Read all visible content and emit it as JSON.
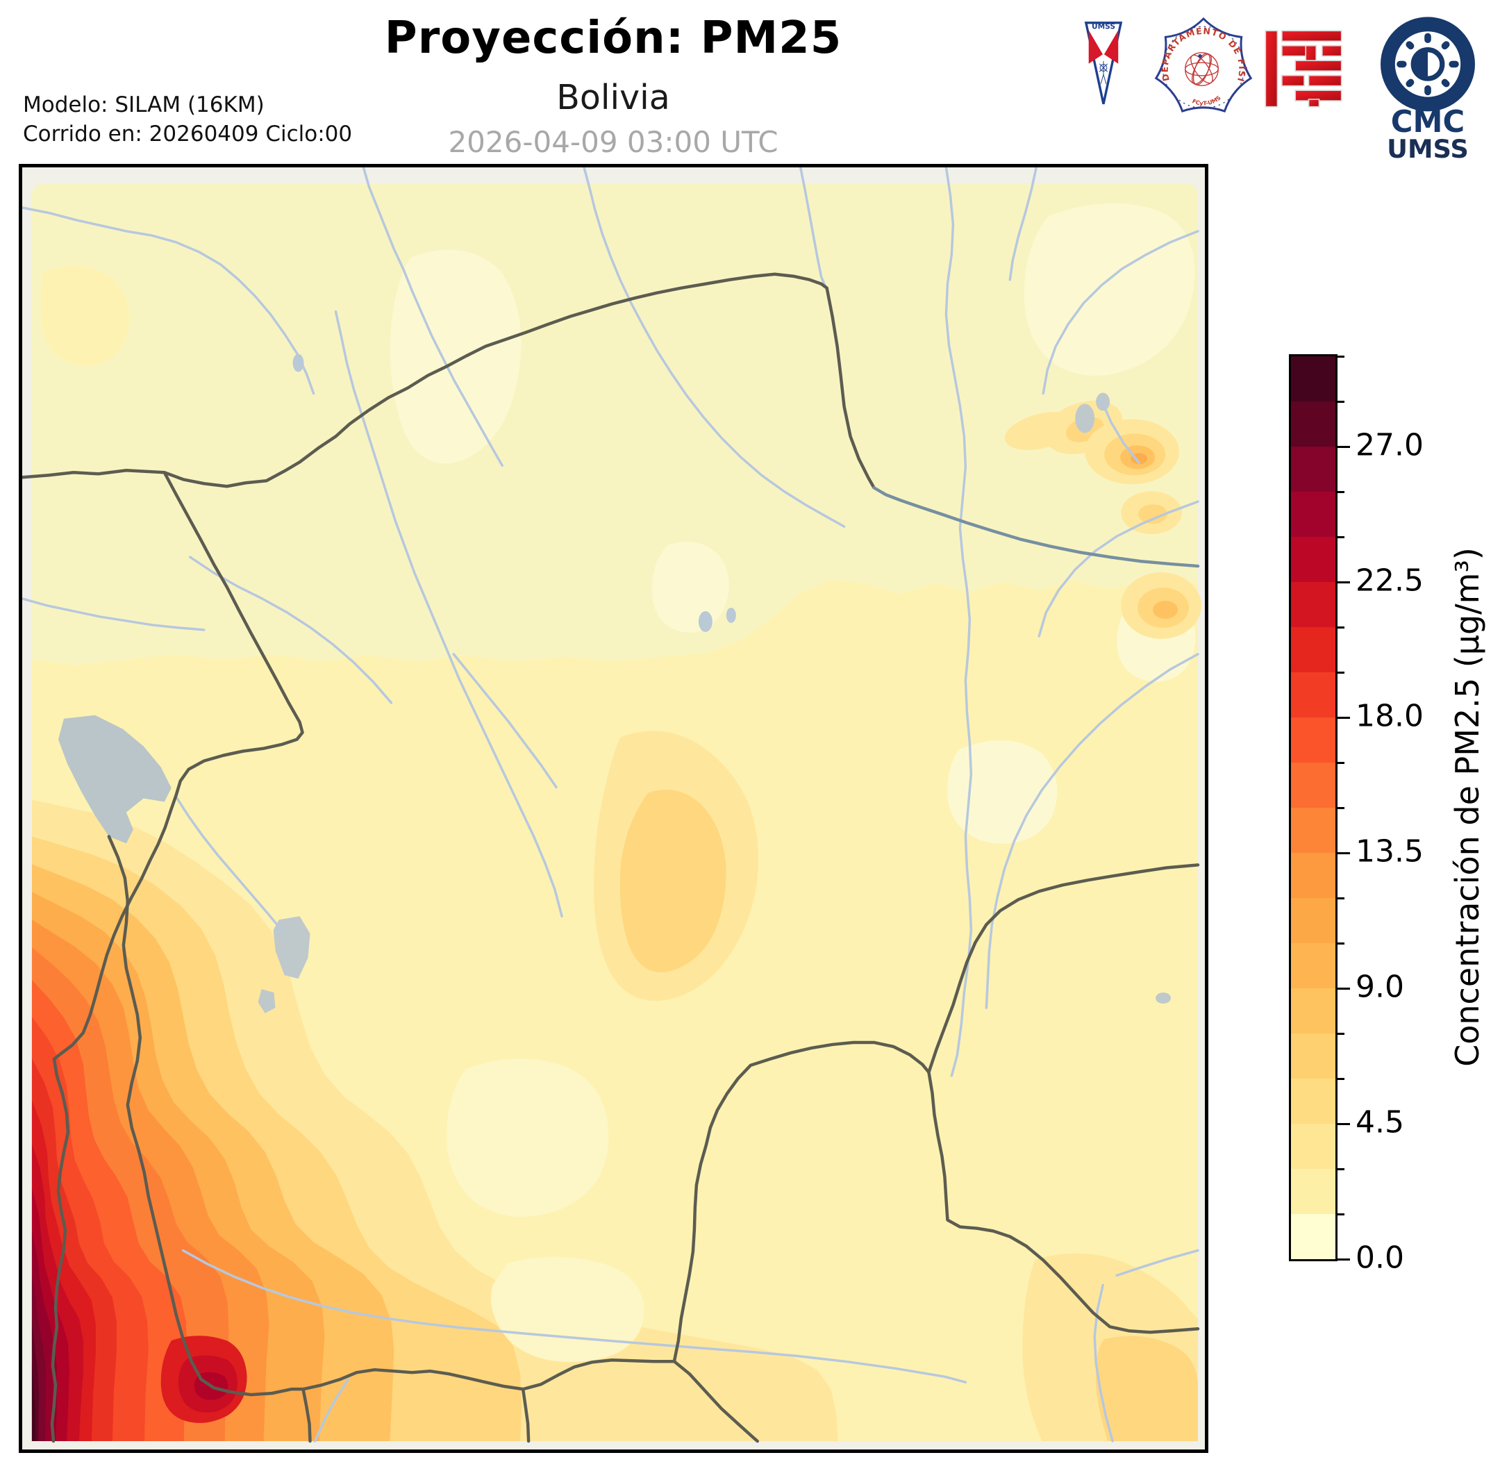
{
  "header": {
    "title": "Proyección: PM25",
    "subtitle": "Bolivia",
    "datetime": "2026-04-09 03:00 UTC",
    "model_line1": "Modelo: SILAM (16KM)",
    "model_line2": "Corrido en: 20260409 Ciclo:00"
  },
  "logos": {
    "umss_pennant_text": "UMSS",
    "fisica_seal_ring_text": "DEPARTAMENTO DE FÍSICA",
    "fisica_seal_bottom_text": "FCyT-UMSS",
    "cmc_line1": "CMC",
    "cmc_line2": "UMSS"
  },
  "colorbar": {
    "label": "Concentración de PM2.5 (µg/m³)",
    "min": 0,
    "max": 30,
    "segment_step": 1.5,
    "major_ticks": [
      {
        "value": 27.0,
        "label": "27.0"
      },
      {
        "value": 22.5,
        "label": "22.5"
      },
      {
        "value": 18.0,
        "label": "18.0"
      },
      {
        "value": 13.5,
        "label": "13.5"
      },
      {
        "value": 9.0,
        "label": "9.0"
      },
      {
        "value": 4.5,
        "label": "4.5"
      },
      {
        "value": 0.0,
        "label": "0.0"
      }
    ],
    "colors_top_to_bottom": [
      "#45041d",
      "#5f0423",
      "#84042c",
      "#a2032c",
      "#bd0726",
      "#d31421",
      "#e5261e",
      "#f23c24",
      "#fb542b",
      "#fc6d31",
      "#fd8538",
      "#fd993f",
      "#fda847",
      "#feb551",
      "#fec35f",
      "#fed06f",
      "#fedc82",
      "#fee694",
      "#feefa6",
      "#fffdd2"
    ]
  },
  "chart_data": {
    "type": "heatmap",
    "title": "Proyección: PM25",
    "region": "Bolivia",
    "variable": "Concentración de PM2.5",
    "units": "µg/m³",
    "model": "SILAM (16KM)",
    "run_date": "20260409",
    "run_cycle": "00",
    "valid_time": "2026-04-09 03:00 UTC",
    "scale_min": 0,
    "scale_max": 30,
    "contour_interval": 1.5,
    "labeled_levels": [
      0.0,
      4.5,
      9.0,
      13.5,
      18.0,
      22.5,
      27.0
    ],
    "legend_position": "right, vertical colorbar",
    "field_summary": {
      "background_level_ug_m3": "0 - 4.5 over most of northern and eastern Bolivia",
      "hotspots": [
        {
          "location": "southwest corner along Chile-Bolivia Andes strip (bottom-left map edge)",
          "value_ug_m3": ">27 (darkest maroon core at bottom-left corner)"
        },
        {
          "location": "western Altiplano band south of Lake Titicaca",
          "value_ug_m3": "9 - 21 plume widening toward the south"
        },
        {
          "location": "detached blob near bottom-left (S of Salar region)",
          "value_ug_m3": "18 - 21"
        },
        {
          "location": "central Bolivia elongated blob (Cochabamba-Santa Cruz lowlands)",
          "value_ug_m3": "4.5 - 7.5"
        },
        {
          "location": "northeastern small spots (Beni / Brazil border)",
          "value_ug_m3": "6 - 10.5"
        },
        {
          "location": "southeast corner (Paraguay border)",
          "value_ug_m3": "4.5 - 7.5"
        }
      ],
      "map_layers": [
        "filled PM2.5 contours",
        "country and department borders (dark gray)",
        "rivers (light blue)",
        "lakes Titicaca and Poopó (gray)"
      ]
    }
  }
}
